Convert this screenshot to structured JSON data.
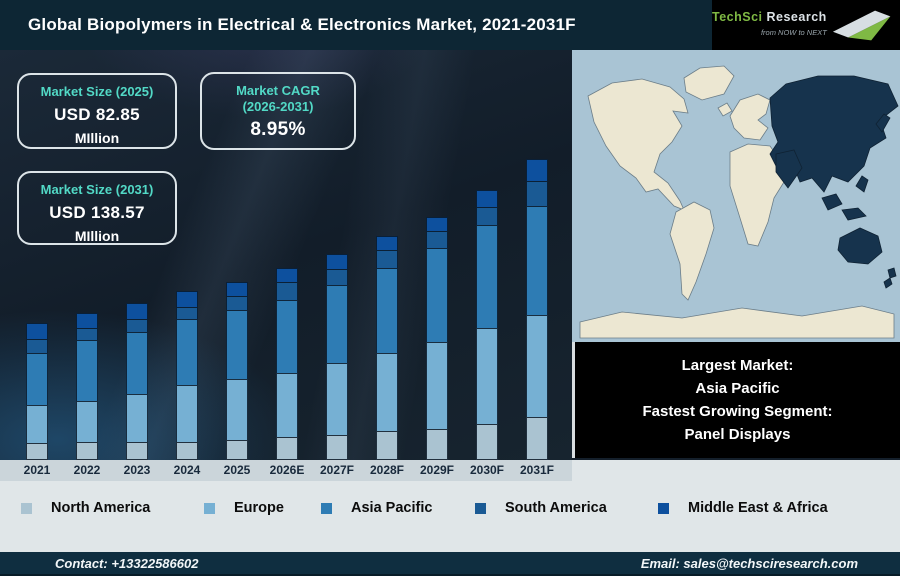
{
  "title": "Global Biopolymers in Electrical & Electronics Market, 2021-2031F",
  "logo": {
    "brand_primary": "TechSci",
    "brand_secondary": "Research",
    "tagline": "from NOW to NEXT"
  },
  "stat_boxes": {
    "size_2025": {
      "label": "Market Size (2025)",
      "value": "USD 82.85",
      "unit": "MIllion"
    },
    "cagr": {
      "label": "Market CAGR",
      "label2": "(2026-2031)",
      "value": "8.95%"
    },
    "size_2031": {
      "label": "Market Size (2031)",
      "value": "USD 138.57",
      "unit": "MIllion"
    }
  },
  "highlight_box": {
    "line1": "Largest Market:",
    "line2": "Asia Pacific",
    "line3": "Fastest Growing Segment:",
    "line4": "Panel Displays"
  },
  "footer": {
    "contact": "Contact: +13322586602",
    "email": "Email: sales@techsciresearch.com"
  },
  "colors": {
    "accent_teal": "#52d9c6",
    "title_bar": "#0d2634",
    "chart_background": "#141f2b",
    "map_highlight": "#16334d",
    "map_land": "#ece7d2",
    "map_ocean": "#a9c4d4"
  },
  "chart_data": {
    "type": "bar",
    "variant": "stacked",
    "unit": "USD Million",
    "title": "Global Biopolymers in Electrical & Electronics Market, 2021-2031F",
    "categories": [
      "2021",
      "2022",
      "2023",
      "2024",
      "2025",
      "2026E",
      "2027F",
      "2028F",
      "2029F",
      "2030F",
      "2031F"
    ],
    "series": [
      {
        "name": "North America",
        "color": "#aac3d1",
        "values": [
          7.7,
          8.2,
          8.1,
          8.2,
          9.2,
          10.5,
          11.5,
          13.3,
          14.1,
          16.2,
          19.7
        ]
      },
      {
        "name": "Europe",
        "color": "#76b0d3",
        "values": [
          17.8,
          19.3,
          22.2,
          26.5,
          27.9,
          29.5,
          33.1,
          35.6,
          39.9,
          44.3,
          46.6
        ]
      },
      {
        "name": "Asia Pacific",
        "color": "#2e7cb4",
        "values": [
          24.1,
          28.0,
          28.9,
          30.3,
          31.8,
          33.8,
          36.0,
          39.4,
          43.1,
          47.3,
          50.0
        ]
      },
      {
        "name": "South America",
        "color": "#1a5a94",
        "values": [
          6.7,
          5.8,
          6.3,
          5.8,
          7.2,
          8.6,
          7.7,
          8.5,
          8.6,
          8.5,
          12.0
        ]
      },
      {
        "name": "Middle East & Africa",
        "color": "#0d509e",
        "values": [
          7.7,
          7.2,
          7.7,
          7.7,
          6.75,
          6.6,
          7.2,
          6.7,
          6.8,
          8.2,
          10.27
        ]
      }
    ],
    "totals": [
      64.0,
      68.5,
      73.2,
      78.5,
      82.85,
      89.0,
      95.5,
      103.5,
      112.5,
      124.5,
      138.57
    ],
    "ylim": [
      0,
      150
    ],
    "y_axis_shown": false,
    "grid": false,
    "legend_position": "bottom"
  }
}
